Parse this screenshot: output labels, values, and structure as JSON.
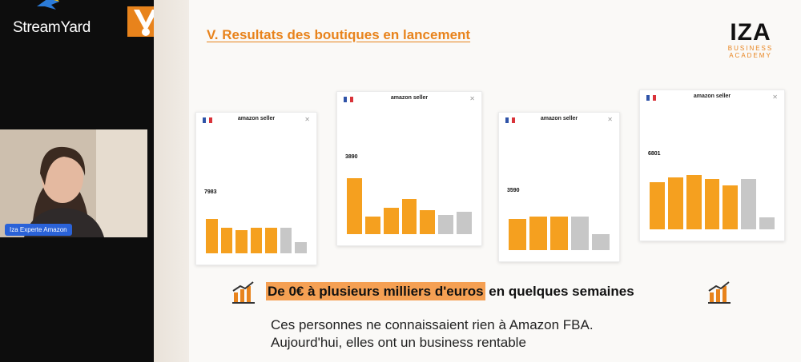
{
  "stream": {
    "brand": "StreamYard",
    "presenter_label": "Iza Experte Amazon"
  },
  "slide": {
    "title": "V. Resultats des boutiques en lancement",
    "logo_main": "IZA",
    "logo_sub1": "BUSINESS",
    "logo_sub2": "ACADEMY",
    "headline_highlight": "De 0€ à plusieurs milliers d'euros",
    "headline_rest": " en quelques semaines",
    "sub_line1": "Ces personnes ne connaissaient rien à Amazon FBA.",
    "sub_line2": "Aujourd'hui, elles ont un business rentable"
  },
  "cards": [
    {
      "brand": "amazon seller",
      "stat": "7983",
      "bars": [
        0.75,
        0.55,
        0.5,
        0.55,
        0.55,
        0.55,
        0.25
      ],
      "bar_colors": [
        "o",
        "o",
        "o",
        "o",
        "o",
        "g",
        "g"
      ]
    },
    {
      "brand": "amazon seller",
      "stat": "3890",
      "bars": [
        0.95,
        0.3,
        0.45,
        0.6,
        0.4,
        0.32,
        0.38
      ],
      "bar_colors": [
        "o",
        "o",
        "o",
        "o",
        "o",
        "g",
        "g"
      ]
    },
    {
      "brand": "amazon seller",
      "stat": "3590",
      "bars": [
        0.7,
        0.75,
        0.75,
        0.75,
        0.35
      ],
      "bar_colors": [
        "o",
        "o",
        "o",
        "g",
        "g"
      ]
    },
    {
      "brand": "amazon seller",
      "stat": "6801",
      "bars": [
        0.8,
        0.88,
        0.92,
        0.85,
        0.75,
        0.85,
        0.2
      ],
      "bar_colors": [
        "o",
        "o",
        "o",
        "o",
        "o",
        "g",
        "g"
      ]
    }
  ],
  "colors": {
    "accent": "#e8831c",
    "bar_orange": "#f5a01f",
    "bar_gray": "#c7c7c7",
    "highlight": "#f5a053"
  }
}
